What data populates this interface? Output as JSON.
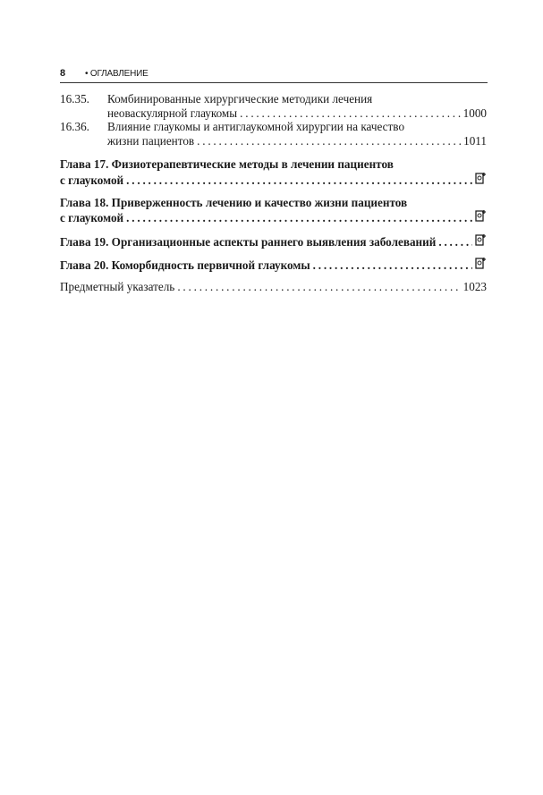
{
  "header": {
    "page_number": "8",
    "section": "• ОГЛАВЛЕНИЕ"
  },
  "entries": [
    {
      "num": "16.35.",
      "line1": "Комбинированные хирургические методики лечения",
      "line2": "неоваскулярной глаукомы",
      "page": "1000"
    },
    {
      "num": "16.36.",
      "line1": "Влияние глаукомы и антиглаукомной хирургии на качество",
      "line2": "жизни пациентов",
      "page": "1011"
    }
  ],
  "chapters": [
    {
      "line1": "Глава 17. Физиотерапевтические методы в лечении пациентов",
      "line2": "с глаукомой",
      "icon": "online-material-icon"
    },
    {
      "line1": "Глава 18. Приверженность лечению и качество жизни пациентов",
      "line2": "с глаукомой",
      "icon": "online-material-icon"
    },
    {
      "line1": "Глава 19. Организационные аспекты раннего выявления заболеваний",
      "icon": "online-material-icon"
    },
    {
      "line1": "Глава 20. Коморбидность первичной глаукомы",
      "icon": "online-material-icon"
    }
  ],
  "index": {
    "label": "Предметный указатель",
    "page": "1023"
  }
}
